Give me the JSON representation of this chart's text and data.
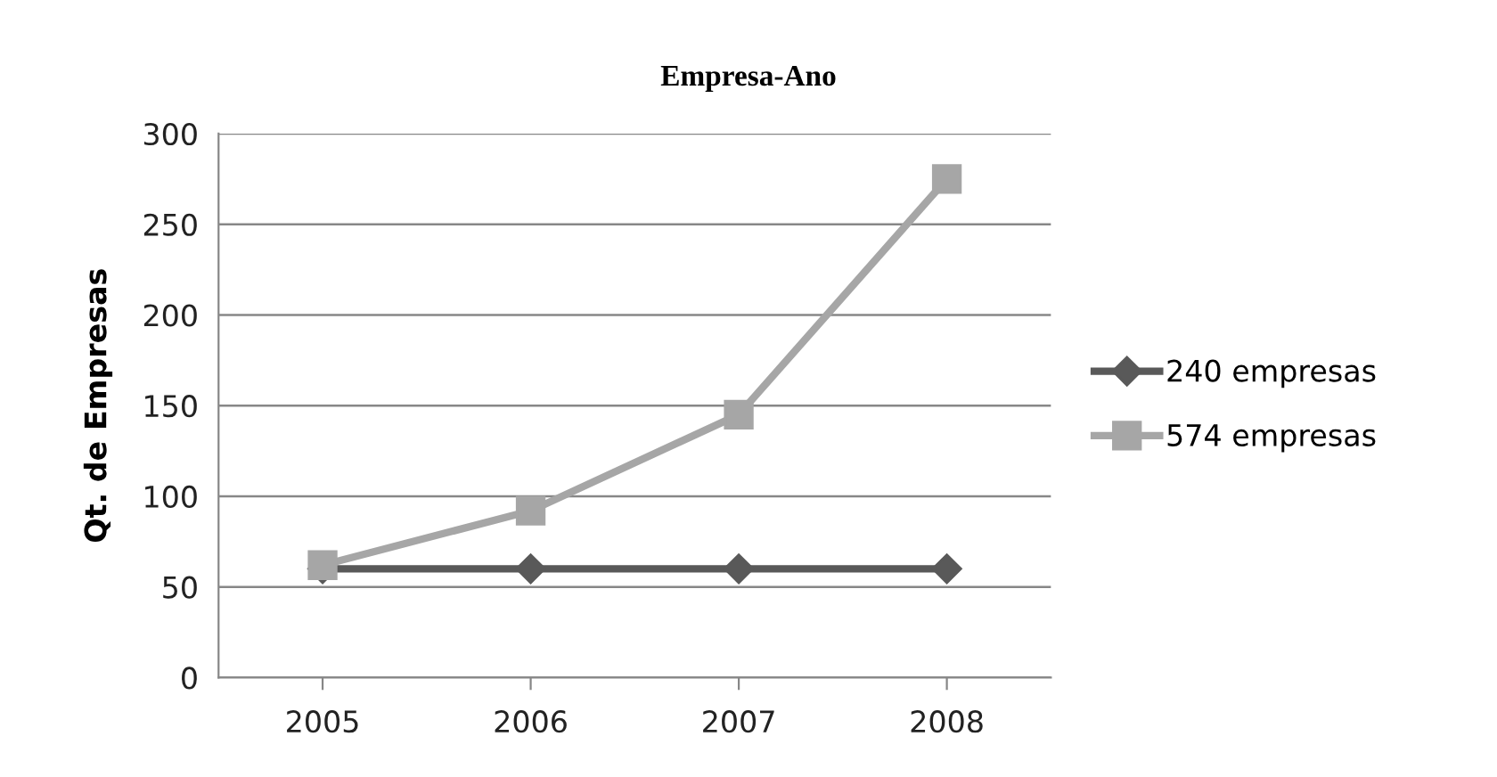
{
  "chart_data": {
    "type": "line",
    "title": "Empresa-Ano",
    "ylabel": "Qt. de Empresas",
    "categories": [
      "2005",
      "2006",
      "2007",
      "2008"
    ],
    "series": [
      {
        "name": "240 empresas",
        "color": "#595959",
        "marker": "diamond",
        "values": [
          60,
          60,
          60,
          60
        ]
      },
      {
        "name": "574 empresas",
        "color": "#a6a6a6",
        "marker": "square",
        "values": [
          62,
          92,
          145,
          275
        ]
      }
    ],
    "ylim": [
      0,
      300
    ],
    "yticks": [
      0,
      50,
      100,
      150,
      200,
      250,
      300
    ],
    "grid": "y",
    "legend": "right",
    "line_style": "solid"
  }
}
